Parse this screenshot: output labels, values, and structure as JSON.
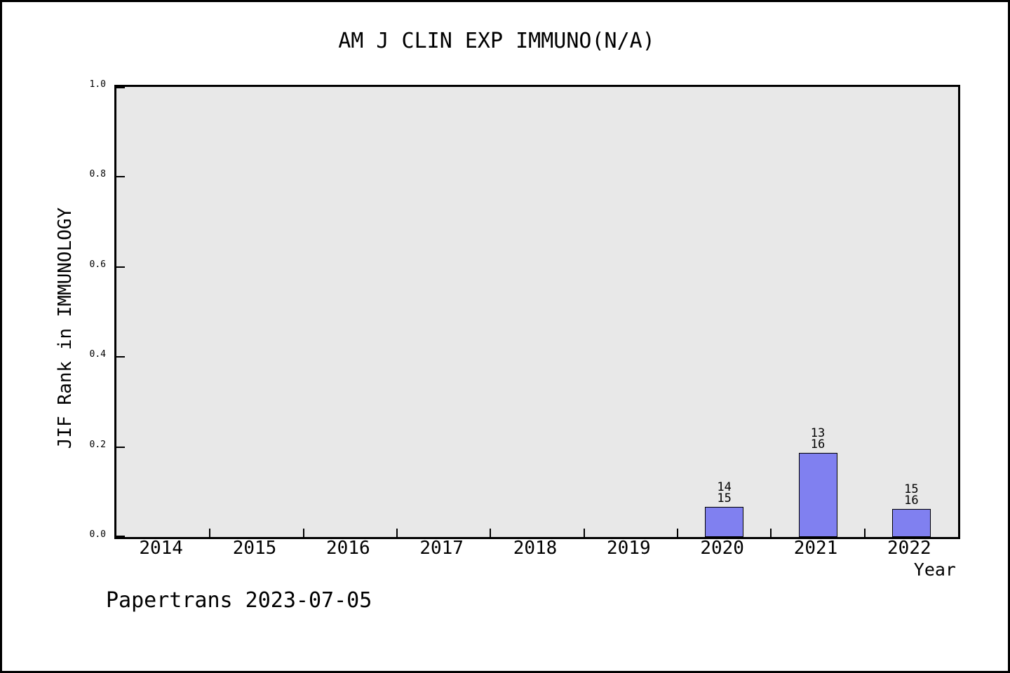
{
  "window": {
    "background": "#ffffff",
    "border_color": "#000000"
  },
  "chart_data": {
    "type": "bar",
    "title": "AM J CLIN EXP IMMUNO(N/A)",
    "xlabel": "Year",
    "ylabel": "JIF Rank in IMMUNOLOGY",
    "categories": [
      "2014",
      "2015",
      "2016",
      "2017",
      "2018",
      "2019",
      "2020",
      "2021",
      "2022"
    ],
    "values": [
      null,
      null,
      null,
      null,
      null,
      null,
      0.0667,
      0.1875,
      0.0625
    ],
    "bar_annotations": [
      null,
      null,
      null,
      null,
      null,
      null,
      [
        "14",
        "15"
      ],
      [
        "13",
        "16"
      ],
      [
        "15",
        "16"
      ]
    ],
    "ylim": [
      0.0,
      1.0
    ],
    "yticks": [
      0.0,
      0.2,
      0.4,
      0.6,
      0.8,
      1.0
    ],
    "ytick_labels": [
      "0.0",
      "0.2",
      "0.4",
      "0.6",
      "0.8",
      "1.0"
    ],
    "grid": false,
    "legend": false,
    "plot_bg": "#e8e8e8",
    "bar_color": "#8080f0",
    "bar_edge_color": "#000000"
  },
  "footer": {
    "text": "Papertrans 2023-07-05"
  }
}
